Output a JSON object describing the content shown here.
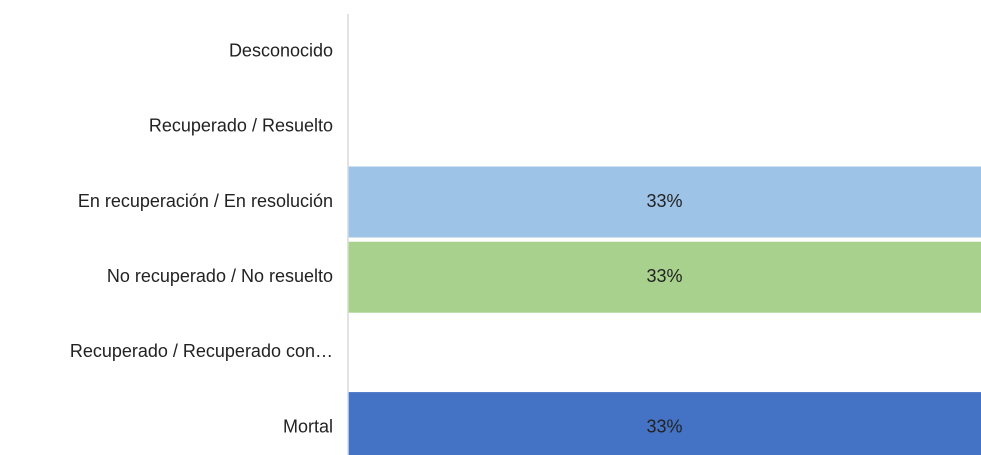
{
  "chart_data": {
    "type": "barh",
    "categories": [
      "Desconocido",
      "Recuperado / Resuelto",
      "En recuperación / En resolución",
      "No recuperado / No resuelto",
      "Recuperado / Recuperado con…",
      "Mortal"
    ],
    "values": [
      0,
      0,
      33,
      33,
      0,
      33
    ],
    "value_labels": [
      null,
      null,
      "33%",
      "33%",
      null,
      "33%"
    ],
    "colors": [
      null,
      null,
      "#9dc3e6",
      "#a9d18e",
      null,
      "#4472c4"
    ],
    "xlim": [
      0,
      33
    ]
  }
}
